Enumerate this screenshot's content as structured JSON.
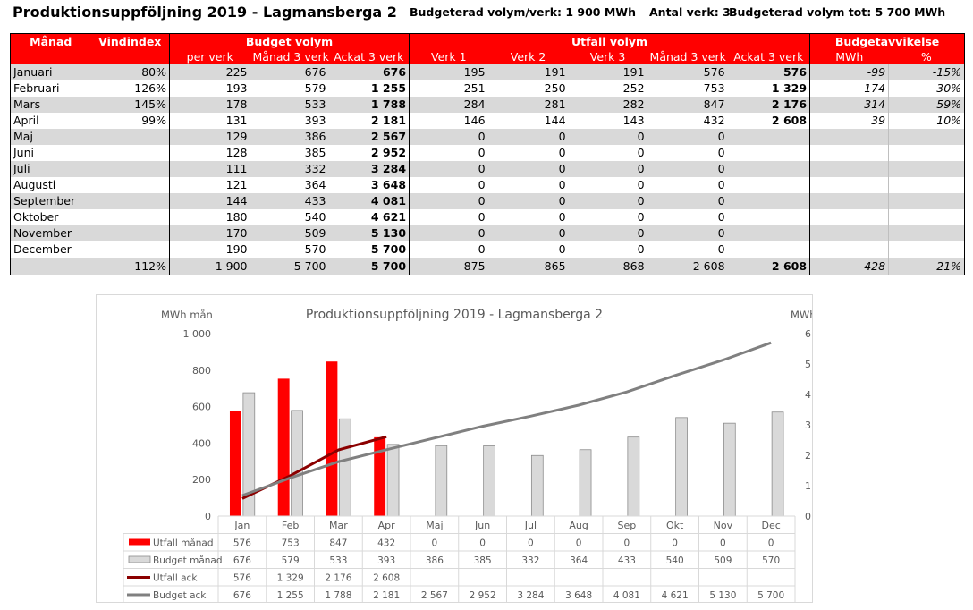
{
  "header": {
    "title": "Produktionsuppföljning 2019 - Lagmansberga 2",
    "budget_per_verk": "Budgeterad volym/verk: 1 900 MWh",
    "antal_verk": "Antal verk: 3",
    "budget_tot": "Budgeterad volym tot: 5 700 MWh"
  },
  "table": {
    "group_headers": {
      "manad": "Månad",
      "vindindex": "Vindindex",
      "budget": "Budget volym",
      "utfall": "Utfall volym",
      "avvikelse": "Budgetavvikelse"
    },
    "sub_headers": {
      "per_verk": "per verk",
      "manad3": "Månad 3 verk",
      "ackat3": "Ackat 3 verk",
      "verk1": "Verk 1",
      "verk2": "Verk 2",
      "verk3": "Verk 3",
      "u_manad3": "Månad 3 verk",
      "u_ackat3": "Ackat 3 verk",
      "mwh": "MWh",
      "pct": "%"
    },
    "rows": [
      {
        "month": "Januari",
        "vindindex": "80%",
        "per_verk": "225",
        "manad3": "676",
        "ackat3": "676",
        "verk1": "195",
        "verk2": "191",
        "verk3": "191",
        "u_manad3": "576",
        "u_ackat3": "576",
        "mwh": "-99",
        "pct": "-15%"
      },
      {
        "month": "Februari",
        "vindindex": "126%",
        "per_verk": "193",
        "manad3": "579",
        "ackat3": "1 255",
        "verk1": "251",
        "verk2": "250",
        "verk3": "252",
        "u_manad3": "753",
        "u_ackat3": "1 329",
        "mwh": "174",
        "pct": "30%"
      },
      {
        "month": "Mars",
        "vindindex": "145%",
        "per_verk": "178",
        "manad3": "533",
        "ackat3": "1 788",
        "verk1": "284",
        "verk2": "281",
        "verk3": "282",
        "u_manad3": "847",
        "u_ackat3": "2 176",
        "mwh": "314",
        "pct": "59%"
      },
      {
        "month": "April",
        "vindindex": "99%",
        "per_verk": "131",
        "manad3": "393",
        "ackat3": "2 181",
        "verk1": "146",
        "verk2": "144",
        "verk3": "143",
        "u_manad3": "432",
        "u_ackat3": "2 608",
        "mwh": "39",
        "pct": "10%"
      },
      {
        "month": "Maj",
        "vindindex": "",
        "per_verk": "129",
        "manad3": "386",
        "ackat3": "2 567",
        "verk1": "0",
        "verk2": "0",
        "verk3": "0",
        "u_manad3": "0",
        "u_ackat3": "",
        "mwh": "",
        "pct": ""
      },
      {
        "month": "Juni",
        "vindindex": "",
        "per_verk": "128",
        "manad3": "385",
        "ackat3": "2 952",
        "verk1": "0",
        "verk2": "0",
        "verk3": "0",
        "u_manad3": "0",
        "u_ackat3": "",
        "mwh": "",
        "pct": ""
      },
      {
        "month": "Juli",
        "vindindex": "",
        "per_verk": "111",
        "manad3": "332",
        "ackat3": "3 284",
        "verk1": "0",
        "verk2": "0",
        "verk3": "0",
        "u_manad3": "0",
        "u_ackat3": "",
        "mwh": "",
        "pct": ""
      },
      {
        "month": "Augusti",
        "vindindex": "",
        "per_verk": "121",
        "manad3": "364",
        "ackat3": "3 648",
        "verk1": "0",
        "verk2": "0",
        "verk3": "0",
        "u_manad3": "0",
        "u_ackat3": "",
        "mwh": "",
        "pct": ""
      },
      {
        "month": "September",
        "vindindex": "",
        "per_verk": "144",
        "manad3": "433",
        "ackat3": "4 081",
        "verk1": "0",
        "verk2": "0",
        "verk3": "0",
        "u_manad3": "0",
        "u_ackat3": "",
        "mwh": "",
        "pct": ""
      },
      {
        "month": "Oktober",
        "vindindex": "",
        "per_verk": "180",
        "manad3": "540",
        "ackat3": "4 621",
        "verk1": "0",
        "verk2": "0",
        "verk3": "0",
        "u_manad3": "0",
        "u_ackat3": "",
        "mwh": "",
        "pct": ""
      },
      {
        "month": "November",
        "vindindex": "",
        "per_verk": "170",
        "manad3": "509",
        "ackat3": "5 130",
        "verk1": "0",
        "verk2": "0",
        "verk3": "0",
        "u_manad3": "0",
        "u_ackat3": "",
        "mwh": "",
        "pct": ""
      },
      {
        "month": "December",
        "vindindex": "",
        "per_verk": "190",
        "manad3": "570",
        "ackat3": "5 700",
        "verk1": "0",
        "verk2": "0",
        "verk3": "0",
        "u_manad3": "0",
        "u_ackat3": "",
        "mwh": "",
        "pct": ""
      }
    ],
    "total": {
      "month": "",
      "vindindex": "112%",
      "per_verk": "1 900",
      "manad3": "5 700",
      "ackat3": "5 700",
      "verk1": "875",
      "verk2": "865",
      "verk3": "868",
      "u_manad3": "2 608",
      "u_ackat3": "2 608",
      "mwh": "428",
      "pct": "21%"
    }
  },
  "colors": {
    "header_red": "#ff0000",
    "utfall_bar": "#ff0000",
    "budget_bar": "#d9d9d9",
    "utfall_ack_line": "#8b0000",
    "budget_ack_line": "#808080"
  },
  "chart_data": {
    "type": "bar",
    "title": "Produktionsuppföljning 2019 - Lagmansberga 2",
    "ylabel": "MWh mån",
    "y2label": "MWh ack",
    "ylim": [
      0,
      1000
    ],
    "y2lim": [
      0,
      6000
    ],
    "yticks": [
      "0",
      "200",
      "400",
      "600",
      "800",
      "1 000"
    ],
    "y2ticks": [
      "0",
      "1 000",
      "2 000",
      "3 000",
      "4 000",
      "5 000",
      "6 000"
    ],
    "categories": [
      "Jan",
      "Feb",
      "Mar",
      "Apr",
      "Maj",
      "Jun",
      "Jul",
      "Aug",
      "Sep",
      "Okt",
      "Nov",
      "Dec"
    ],
    "series": [
      {
        "name": "Utfall månad",
        "kind": "bar",
        "axis": "left",
        "color": "#ff0000",
        "values": [
          576,
          753,
          847,
          432,
          0,
          0,
          0,
          0,
          0,
          0,
          0,
          0
        ],
        "labels": [
          "576",
          "753",
          "847",
          "432",
          "0",
          "0",
          "0",
          "0",
          "0",
          "0",
          "0",
          "0"
        ]
      },
      {
        "name": "Budget månad",
        "kind": "bar",
        "axis": "left",
        "color": "#d9d9d9",
        "values": [
          676,
          579,
          533,
          393,
          386,
          385,
          332,
          364,
          433,
          540,
          509,
          570
        ],
        "labels": [
          "676",
          "579",
          "533",
          "393",
          "386",
          "385",
          "332",
          "364",
          "433",
          "540",
          "509",
          "570"
        ]
      },
      {
        "name": "Utfall ack",
        "kind": "line",
        "axis": "right",
        "color": "#8b0000",
        "values": [
          576,
          1329,
          2176,
          2608,
          null,
          null,
          null,
          null,
          null,
          null,
          null,
          null
        ],
        "labels": [
          "576",
          "1 329",
          "2 176",
          "2 608",
          "",
          "",
          "",
          "",
          "",
          "",
          "",
          ""
        ]
      },
      {
        "name": "Budget ack",
        "kind": "line",
        "axis": "right",
        "color": "#808080",
        "values": [
          676,
          1255,
          1788,
          2181,
          2567,
          2952,
          3284,
          3648,
          4081,
          4621,
          5130,
          5700
        ],
        "labels": [
          "676",
          "1 255",
          "1 788",
          "2 181",
          "2 567",
          "2 952",
          "3 284",
          "3 648",
          "4 081",
          "4 621",
          "5 130",
          "5 700"
        ]
      }
    ],
    "legend": "data-table-below",
    "grid": false
  }
}
